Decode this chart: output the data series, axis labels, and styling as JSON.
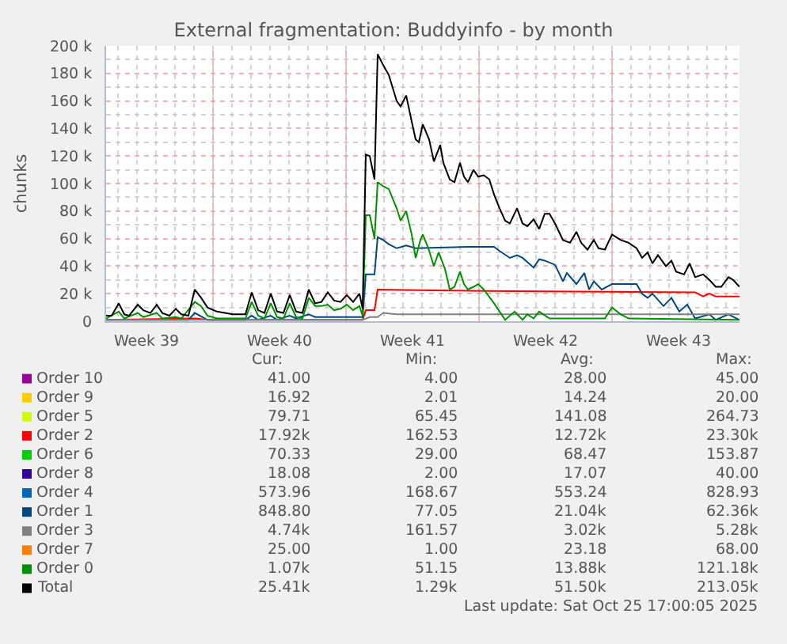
{
  "chart_data": {
    "type": "line",
    "title": "External fragmentation: Buddyinfo - by month",
    "ylabel": "chunks",
    "xlim": [
      "2025-09-22T09:00",
      "2025-10-25T17:00"
    ],
    "xticks": [
      {
        "value": "2025-09-24T12:00",
        "label": "Week 39"
      },
      {
        "value": "2025-10-01T12:00",
        "label": "Week 40"
      },
      {
        "value": "2025-10-08T12:00",
        "label": "Week 41"
      },
      {
        "value": "2025-10-15T12:00",
        "label": "Week 42"
      },
      {
        "value": "2025-10-22T12:00",
        "label": "Week 43"
      }
    ],
    "ylim": [
      0,
      200000
    ],
    "yticks": [
      0,
      {
        "value": 20000,
        "label": "20 k"
      },
      {
        "value": 40000,
        "label": "40 k"
      },
      {
        "value": 60000,
        "label": "60 k"
      },
      {
        "value": 80000,
        "label": "80 k"
      },
      {
        "value": 100000,
        "label": "100 k"
      },
      {
        "value": 120000,
        "label": "120 k"
      },
      {
        "value": 140000,
        "label": "140 k"
      },
      {
        "value": 160000,
        "label": "160 k"
      },
      {
        "value": 180000,
        "label": "180 k"
      },
      {
        "value": 200000,
        "label": "200 k"
      }
    ],
    "grid": true,
    "legend": "bottom",
    "series": [
      {
        "name": "Order 10",
        "color": "#990099"
      },
      {
        "name": "Order 9",
        "color": "#ffcc00"
      },
      {
        "name": "Order 5",
        "color": "#ccff00"
      },
      {
        "name": "Order 2",
        "color": "#ff0000",
        "x": [
          "2025-09-22T09:00",
          "2025-09-27T01:00",
          "2025-09-27T17:00",
          "2025-10-05T21:00",
          "2025-10-06T01:00",
          "2025-10-06T12:00",
          "2025-10-06T16:00",
          "2025-10-12T06:00",
          "2025-10-23T09:00",
          "2025-10-23T19:00",
          "2025-10-24T03:00",
          "2025-10-24T11:00",
          "2025-10-25T17:00"
        ],
        "values": [
          1000,
          2000,
          1000,
          1000,
          8000,
          8000,
          23000,
          22000,
          21000,
          18000,
          20000,
          18000,
          18000
        ]
      },
      {
        "name": "Order 6",
        "color": "#00cc00"
      },
      {
        "name": "Order 8",
        "color": "#330099"
      },
      {
        "name": "Order 4",
        "color": "#0066b3"
      },
      {
        "name": "Order 1",
        "color": "#00487d",
        "x": [
          "2025-09-22T09:00",
          "2025-09-26T17:00",
          "2025-09-27T01:00",
          "2025-09-27T17:00",
          "2025-09-29T17:00",
          "2025-09-30T01:00",
          "2025-09-30T09:00",
          "2025-10-01T01:00",
          "2025-10-01T09:00",
          "2025-10-02T01:00",
          "2025-10-02T09:00",
          "2025-10-03T01:00",
          "2025-10-03T09:00",
          "2025-10-05T21:00",
          "2025-10-06T01:00",
          "2025-10-06T12:00",
          "2025-10-06T16:00",
          "2025-10-06T23:00",
          "2025-10-07T06:00",
          "2025-10-07T16:00",
          "2025-10-08T04:00",
          "2025-10-08T16:00",
          "2025-10-11T10:00",
          "2025-10-12T19:00",
          "2025-10-13T02:00",
          "2025-10-13T15:00",
          "2025-10-14T00:00",
          "2025-10-14T07:00",
          "2025-10-14T21:00",
          "2025-10-15T04:00",
          "2025-10-15T11:00",
          "2025-10-16T00:00",
          "2025-10-16T10:00",
          "2025-10-16T15:00",
          "2025-10-17T03:00",
          "2025-10-17T13:00",
          "2025-10-17T19:00",
          "2025-10-18T01:00",
          "2025-10-18T11:00",
          "2025-10-19T00:00",
          "2025-10-20T07:00",
          "2025-10-20T14:00",
          "2025-10-20T21:00",
          "2025-10-21T03:00",
          "2025-10-21T17:00",
          "2025-10-22T03:00",
          "2025-10-22T13:00",
          "2025-10-22T23:00",
          "2025-10-23T09:00",
          "2025-10-24T03:00",
          "2025-10-24T11:00",
          "2025-10-25T03:00",
          "2025-10-25T17:00"
        ],
        "values": [
          1000,
          1000,
          6000,
          1000,
          1000,
          4000,
          1000,
          4000,
          1000,
          4000,
          2000,
          5000,
          3000,
          3000,
          34000,
          34000,
          61000,
          59000,
          56000,
          53000,
          55000,
          53000,
          54000,
          54000,
          51000,
          46000,
          48000,
          46000,
          39000,
          45000,
          44000,
          41000,
          29000,
          35000,
          27000,
          35000,
          23000,
          29000,
          23000,
          27000,
          27000,
          20000,
          17000,
          20000,
          11000,
          17000,
          7000,
          12000,
          2000,
          5000,
          1000,
          5000,
          1000
        ]
      },
      {
        "name": "Order 3",
        "color": "#808080",
        "x": [
          "2025-09-22T09:00",
          "2025-10-05T21:00",
          "2025-10-06T06:00",
          "2025-10-06T16:00",
          "2025-10-06T23:00",
          "2025-10-07T16:00",
          "2025-10-25T17:00"
        ],
        "values": [
          1000,
          1000,
          3000,
          3000,
          6000,
          5000,
          5000
        ]
      },
      {
        "name": "Order 7",
        "color": "#ff8000"
      },
      {
        "name": "Order 0",
        "color": "#008f00",
        "x": [
          "2025-09-22T09:00",
          "2025-09-23T01:00",
          "2025-09-23T08:00",
          "2025-09-24T01:00",
          "2025-09-24T08:00",
          "2025-09-25T01:00",
          "2025-09-25T08:00",
          "2025-09-26T01:00",
          "2025-09-26T08:00",
          "2025-09-27T01:00",
          "2025-09-27T09:00",
          "2025-09-27T17:00",
          "2025-09-28T05:00",
          "2025-09-29T17:00",
          "2025-09-30T01:00",
          "2025-09-30T09:00",
          "2025-09-30T17:00",
          "2025-10-01T01:00",
          "2025-10-01T09:00",
          "2025-10-01T17:00",
          "2025-10-02T01:00",
          "2025-10-02T09:00",
          "2025-10-02T17:00",
          "2025-10-03T01:00",
          "2025-10-03T09:00",
          "2025-10-03T17:00",
          "2025-10-04T01:00",
          "2025-10-04T09:00",
          "2025-10-04T17:00",
          "2025-10-05T01:00",
          "2025-10-05T09:00",
          "2025-10-05T17:00",
          "2025-10-05T21:00",
          "2025-10-06T01:00",
          "2025-10-06T06:00",
          "2025-10-06T12:00",
          "2025-10-06T16:00",
          "2025-10-06T23:00",
          "2025-10-07T06:00",
          "2025-10-07T16:00",
          "2025-10-07T21:00",
          "2025-10-08T04:00",
          "2025-10-08T11:00",
          "2025-10-08T16:00",
          "2025-10-08T22:00",
          "2025-10-09T01:00",
          "2025-10-09T08:00",
          "2025-10-09T15:00",
          "2025-10-09T21:00",
          "2025-10-10T05:00",
          "2025-10-10T11:00",
          "2025-10-10T17:00",
          "2025-10-11T00:00",
          "2025-10-11T05:00",
          "2025-10-11T10:00",
          "2025-10-11T17:00",
          "2025-10-11T23:00",
          "2025-10-12T06:00",
          "2025-10-12T19:00",
          "2025-10-13T09:00",
          "2025-10-13T21:00",
          "2025-10-14T07:00",
          "2025-10-14T13:00",
          "2025-10-14T21:00",
          "2025-10-15T04:00",
          "2025-10-15T17:00",
          "2025-10-18T15:00",
          "2025-10-19T00:00",
          "2025-10-19T11:00",
          "2025-10-19T21:00",
          "2025-10-25T17:00"
        ],
        "values": [
          2000,
          7000,
          2000,
          6000,
          3000,
          6000,
          2000,
          3000,
          2000,
          14000,
          11000,
          4000,
          2000,
          2000,
          14000,
          4000,
          2000,
          13000,
          3000,
          2000,
          13000,
          3000,
          2000,
          17000,
          11000,
          11000,
          12000,
          8000,
          9000,
          12000,
          8000,
          11000,
          4000,
          77000,
          77000,
          60000,
          101000,
          98000,
          96000,
          82000,
          73000,
          80000,
          63000,
          46000,
          59000,
          63000,
          53000,
          40000,
          50000,
          38000,
          23000,
          25000,
          36000,
          27000,
          23000,
          25000,
          27000,
          23000,
          13000,
          1000,
          7000,
          1000,
          5000,
          2000,
          7000,
          2000,
          2000,
          10000,
          5000,
          2000,
          1000
        ]
      },
      {
        "name": "Total",
        "color": "#000000",
        "x": [
          "2025-09-22T09:00",
          "2025-09-22T16:00",
          "2025-09-23T01:00",
          "2025-09-23T08:00",
          "2025-09-23T14:00",
          "2025-09-24T01:00",
          "2025-09-24T08:00",
          "2025-09-24T17:00",
          "2025-09-25T01:00",
          "2025-09-25T08:00",
          "2025-09-25T17:00",
          "2025-09-26T01:00",
          "2025-09-26T08:00",
          "2025-09-26T17:00",
          "2025-09-27T01:00",
          "2025-09-27T09:00",
          "2025-09-27T17:00",
          "2025-09-28T05:00",
          "2025-09-29T01:00",
          "2025-09-29T17:00",
          "2025-09-30T01:00",
          "2025-09-30T09:00",
          "2025-09-30T17:00",
          "2025-10-01T01:00",
          "2025-10-01T09:00",
          "2025-10-01T17:00",
          "2025-10-02T01:00",
          "2025-10-02T09:00",
          "2025-10-02T17:00",
          "2025-10-03T01:00",
          "2025-10-03T09:00",
          "2025-10-03T17:00",
          "2025-10-04T01:00",
          "2025-10-04T09:00",
          "2025-10-04T17:00",
          "2025-10-05T01:00",
          "2025-10-05T09:00",
          "2025-10-05T17:00",
          "2025-10-05T21:00",
          "2025-10-06T01:00",
          "2025-10-06T06:00",
          "2025-10-06T12:00",
          "2025-10-06T16:00",
          "2025-10-06T23:00",
          "2025-10-07T06:00",
          "2025-10-07T16:00",
          "2025-10-07T21:00",
          "2025-10-08T04:00",
          "2025-10-08T11:00",
          "2025-10-08T16:00",
          "2025-10-08T20:00",
          "2025-10-09T01:00",
          "2025-10-09T09:00",
          "2025-10-09T15:00",
          "2025-10-09T23:00",
          "2025-10-10T03:00",
          "2025-10-10T11:00",
          "2025-10-10T17:00",
          "2025-10-11T00:00",
          "2025-10-11T05:00",
          "2025-10-11T10:00",
          "2025-10-11T17:00",
          "2025-10-11T23:00",
          "2025-10-12T06:00",
          "2025-10-12T13:00",
          "2025-10-12T19:00",
          "2025-10-13T02:00",
          "2025-10-13T09:00",
          "2025-10-13T15:00",
          "2025-10-14T00:00",
          "2025-10-14T07:00",
          "2025-10-14T13:00",
          "2025-10-14T21:00",
          "2025-10-15T04:00",
          "2025-10-15T11:00",
          "2025-10-15T17:00",
          "2025-10-16T00:00",
          "2025-10-16T10:00",
          "2025-10-16T19:00",
          "2025-10-17T03:00",
          "2025-10-17T09:00",
          "2025-10-17T17:00",
          "2025-10-18T01:00",
          "2025-10-18T07:00",
          "2025-10-18T15:00",
          "2025-10-19T00:00",
          "2025-10-19T11:00",
          "2025-10-19T21:00",
          "2025-10-20T07:00",
          "2025-10-20T14:00",
          "2025-10-20T21:00",
          "2025-10-21T03:00",
          "2025-10-21T10:00",
          "2025-10-21T20:00",
          "2025-10-22T03:00",
          "2025-10-22T09:00",
          "2025-10-22T19:00",
          "2025-10-23T02:00",
          "2025-10-23T09:00",
          "2025-10-23T19:00",
          "2025-10-24T03:00",
          "2025-10-24T11:00",
          "2025-10-24T18:00",
          "2025-10-25T03:00",
          "2025-10-25T09:00",
          "2025-10-25T17:00"
        ],
        "values": [
          4000,
          4000,
          13000,
          5000,
          4000,
          12000,
          8000,
          6000,
          12000,
          6000,
          4000,
          9000,
          5000,
          4000,
          23000,
          17000,
          10000,
          7000,
          5000,
          5000,
          21000,
          8000,
          6000,
          20000,
          7000,
          6000,
          19000,
          7000,
          6000,
          23000,
          13000,
          14000,
          21000,
          15000,
          14000,
          19000,
          14000,
          20000,
          9000,
          121000,
          120000,
          103000,
          194000,
          186000,
          179000,
          160000,
          156000,
          164000,
          145000,
          132000,
          130000,
          143000,
          132000,
          116000,
          128000,
          115000,
          103000,
          101000,
          115000,
          105000,
          101000,
          110000,
          105000,
          106000,
          103000,
          92000,
          82000,
          73000,
          71000,
          82000,
          71000,
          69000,
          74000,
          67000,
          78000,
          78000,
          71000,
          59000,
          57000,
          65000,
          57000,
          52000,
          59000,
          53000,
          52000,
          63000,
          59000,
          57000,
          53000,
          46000,
          50000,
          42000,
          48000,
          40000,
          44000,
          36000,
          34000,
          42000,
          32000,
          34000,
          30000,
          25000,
          25000,
          32000,
          30000,
          25000
        ]
      }
    ],
    "annotations": [
      "Cur:",
      "Min:",
      "Avg:",
      "Max:",
      "41.00",
      "4.00",
      "28.00",
      "45.00",
      "16.92",
      "2.01",
      "14.24",
      "20.00",
      "79.71",
      "65.45",
      "141.08",
      "264.73",
      "17.92k",
      "162.53",
      "12.72k",
      "23.30k",
      "70.33",
      "29.00",
      "68.47",
      "153.87",
      "18.08",
      "2.00",
      "17.07",
      "40.00",
      "573.96",
      "168.67",
      "553.24",
      "828.93",
      "848.80",
      "77.05",
      "21.04k",
      "62.36k",
      "4.74k",
      "161.57",
      "3.02k",
      "5.28k",
      "25.00",
      "1.00",
      "23.18",
      "68.00",
      "1.07k",
      "51.15",
      "13.88k",
      "121.18k",
      "25.41k",
      "1.29k",
      "51.50k",
      "213.05k",
      "Last update: Sat Oct 25 17:00:05 2025"
    ]
  }
}
